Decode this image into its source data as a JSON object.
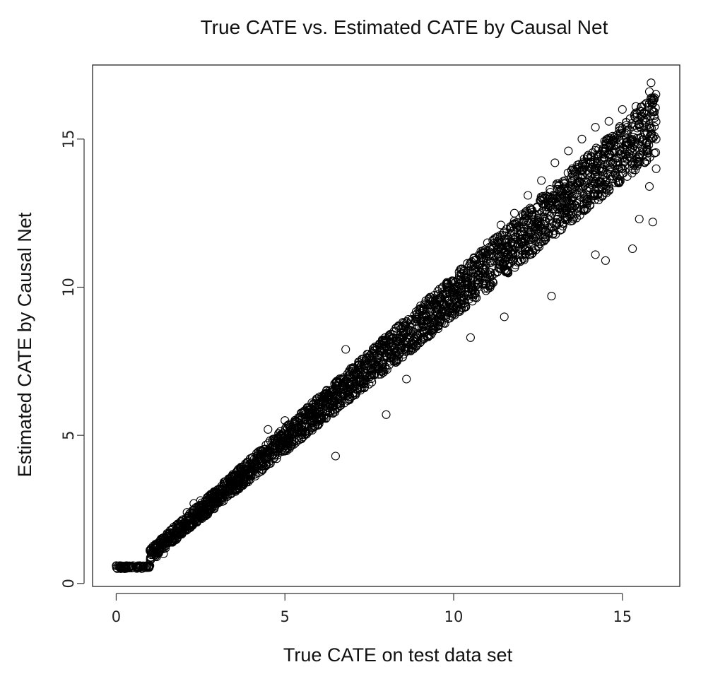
{
  "chart_data": {
    "type": "scatter",
    "title": "True CATE vs. Estimated CATE by Causal Net",
    "xlabel": "True CATE on test data set",
    "ylabel": "Estimated CATE by Causal Net",
    "xlim": [
      -0.7,
      16.7
    ],
    "ylim": [
      -0.1,
      17.5
    ],
    "xticks": [
      0,
      5,
      10,
      15
    ],
    "yticks": [
      0,
      5,
      10,
      15
    ],
    "xtick_labels": [
      "0",
      "5",
      "10",
      "15"
    ],
    "ytick_labels": [
      "0",
      "5",
      "10",
      "15"
    ],
    "grid": false,
    "legend": "none",
    "marker": "open-circle",
    "marker_color": "#000000",
    "series": [
      {
        "points": [
          [
            0.0,
            0.6
          ],
          [
            0.1,
            0.6
          ],
          [
            0.2,
            0.55
          ],
          [
            0.3,
            0.6
          ],
          [
            0.4,
            0.55
          ],
          [
            0.5,
            0.6
          ],
          [
            0.6,
            0.55
          ],
          [
            0.7,
            0.6
          ],
          [
            0.8,
            0.55
          ],
          [
            0.9,
            0.6
          ],
          [
            1.0,
            0.6
          ],
          [
            1.0,
            1.1
          ],
          [
            1.1,
            1.2
          ],
          [
            1.2,
            0.9
          ],
          [
            1.3,
            1.3
          ],
          [
            1.4,
            1.0
          ],
          [
            1.5,
            1.6
          ],
          [
            1.6,
            1.4
          ],
          [
            1.7,
            1.9
          ],
          [
            1.8,
            1.5
          ],
          [
            1.9,
            1.8
          ],
          [
            2.0,
            1.9
          ],
          [
            2.1,
            2.4
          ],
          [
            2.2,
            2.0
          ],
          [
            2.3,
            2.7
          ],
          [
            2.4,
            2.2
          ],
          [
            2.5,
            2.8
          ],
          [
            2.6,
            2.4
          ],
          [
            2.7,
            2.9
          ],
          [
            2.8,
            2.6
          ],
          [
            2.9,
            3.1
          ],
          [
            3.0,
            2.8
          ],
          [
            3.2,
            3.3
          ],
          [
            3.4,
            3.2
          ],
          [
            3.6,
            3.6
          ],
          [
            3.8,
            3.5
          ],
          [
            4.0,
            4.0
          ],
          [
            4.2,
            3.9
          ],
          [
            4.4,
            4.4
          ],
          [
            4.5,
            5.2
          ],
          [
            4.6,
            4.3
          ],
          [
            4.8,
            4.9
          ],
          [
            5.0,
            4.9
          ],
          [
            5.0,
            5.5
          ],
          [
            5.2,
            5.2
          ],
          [
            5.4,
            5.6
          ],
          [
            5.6,
            5.3
          ],
          [
            5.8,
            6.1
          ],
          [
            6.0,
            5.8
          ],
          [
            6.2,
            6.4
          ],
          [
            6.4,
            6.0
          ],
          [
            6.5,
            4.3
          ],
          [
            6.6,
            6.8
          ],
          [
            6.8,
            6.5
          ],
          [
            6.8,
            7.9
          ],
          [
            7.0,
            7.1
          ],
          [
            7.2,
            6.9
          ],
          [
            7.4,
            7.5
          ],
          [
            7.6,
            7.2
          ],
          [
            7.8,
            8.0
          ],
          [
            8.0,
            7.7
          ],
          [
            8.0,
            5.7
          ],
          [
            8.2,
            8.4
          ],
          [
            8.4,
            8.1
          ],
          [
            8.6,
            8.8
          ],
          [
            8.6,
            6.9
          ],
          [
            8.8,
            8.5
          ],
          [
            9.0,
            9.2
          ],
          [
            9.2,
            8.9
          ],
          [
            9.4,
            9.6
          ],
          [
            9.6,
            9.3
          ],
          [
            9.8,
            10.1
          ],
          [
            10.0,
            9.7
          ],
          [
            10.2,
            10.6
          ],
          [
            10.4,
            10.1
          ],
          [
            10.5,
            8.3
          ],
          [
            10.6,
            11.0
          ],
          [
            10.8,
            10.5
          ],
          [
            11.0,
            11.5
          ],
          [
            11.2,
            10.9
          ],
          [
            11.4,
            12.1
          ],
          [
            11.5,
            9.0
          ],
          [
            11.6,
            11.4
          ],
          [
            11.8,
            12.5
          ],
          [
            12.0,
            11.9
          ],
          [
            12.2,
            13.1
          ],
          [
            12.4,
            12.2
          ],
          [
            12.6,
            13.6
          ],
          [
            12.8,
            12.7
          ],
          [
            12.9,
            9.7
          ],
          [
            13.0,
            14.2
          ],
          [
            13.2,
            13.0
          ],
          [
            13.4,
            14.6
          ],
          [
            13.6,
            13.4
          ],
          [
            13.8,
            15.0
          ],
          [
            14.0,
            13.6
          ],
          [
            14.2,
            11.1
          ],
          [
            14.2,
            15.4
          ],
          [
            14.4,
            13.9
          ],
          [
            14.5,
            10.9
          ],
          [
            14.6,
            15.6
          ],
          [
            14.8,
            14.2
          ],
          [
            15.0,
            16.0
          ],
          [
            15.2,
            14.5
          ],
          [
            15.3,
            11.3
          ],
          [
            15.4,
            16.1
          ],
          [
            15.5,
            12.3
          ],
          [
            15.6,
            14.9
          ],
          [
            15.7,
            15.7
          ],
          [
            15.8,
            16.6
          ],
          [
            15.8,
            13.4
          ],
          [
            15.9,
            12.2
          ],
          [
            15.9,
            16.2
          ],
          [
            16.0,
            15.0
          ],
          [
            15.85,
            16.9
          ],
          [
            16.0,
            14.0
          ]
        ]
      }
    ]
  }
}
